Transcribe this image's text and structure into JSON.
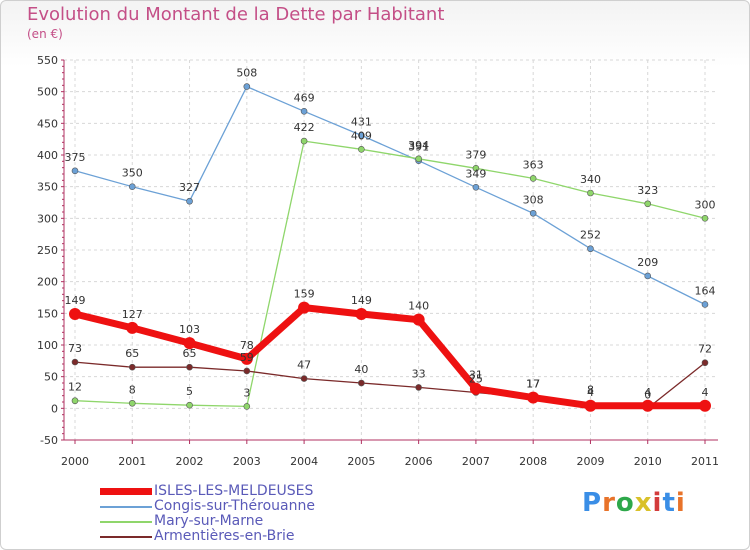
{
  "header": {
    "title": "Evolution du Montant de la Dette par Habitant",
    "subtitle": "(en €)"
  },
  "logo": {
    "text": "Proxiti",
    "colors": [
      "#3a8ee6",
      "#e8732a",
      "#2da84a",
      "#d9c12a",
      "#d33b3b",
      "#3a8ee6",
      "#e8732a"
    ]
  },
  "chart_data": {
    "type": "line",
    "title": "Evolution du Montant de la Dette par Habitant",
    "subtitle": "(en €)",
    "x": [
      "2000",
      "2001",
      "2002",
      "2003",
      "2004",
      "2005",
      "2006",
      "2007",
      "2008",
      "2009",
      "2010",
      "2011"
    ],
    "ylim": [
      -50,
      550
    ],
    "yticks": [
      -50,
      0,
      50,
      100,
      150,
      200,
      250,
      300,
      350,
      400,
      450,
      500,
      550
    ],
    "grid": true,
    "legend_position": "bottom-left",
    "series": [
      {
        "name": "ISLES-LES-MELDEUSES",
        "color": "#ee1111",
        "values": [
          149,
          127,
          103,
          78,
          159,
          149,
          140,
          31,
          17,
          4,
          4,
          4
        ],
        "labels": [
          "149",
          "127",
          "103",
          "78",
          "159",
          "149",
          "140",
          "31",
          "17",
          "4",
          "4",
          "4"
        ]
      },
      {
        "name": "Congis-sur-Thérouanne",
        "color": "#6ca1d6",
        "values": [
          375,
          350,
          327,
          508,
          469,
          431,
          391,
          349,
          308,
          252,
          209,
          164
        ],
        "labels": [
          "375",
          "350",
          "327",
          "508",
          "469",
          "431",
          "391",
          "349",
          "308",
          "252",
          "209",
          "164"
        ]
      },
      {
        "name": "Mary-sur-Marne",
        "color": "#8fd66b",
        "values": [
          12,
          8,
          5,
          3,
          422,
          409,
          394,
          379,
          363,
          340,
          323,
          300
        ],
        "labels": [
          "12",
          "8",
          "5",
          "3",
          "422",
          "409",
          "394",
          "379",
          "363",
          "340",
          "323",
          "300"
        ]
      },
      {
        "name": "Armentières-en-Brie",
        "color": "#7b2a2a",
        "values": [
          73,
          65,
          65,
          59,
          47,
          40,
          33,
          25,
          17,
          8,
          0,
          72
        ],
        "labels": [
          "73",
          "65",
          "65",
          "59",
          "47",
          "40",
          "33",
          "25",
          "17",
          "8",
          "0",
          "72"
        ]
      }
    ]
  }
}
